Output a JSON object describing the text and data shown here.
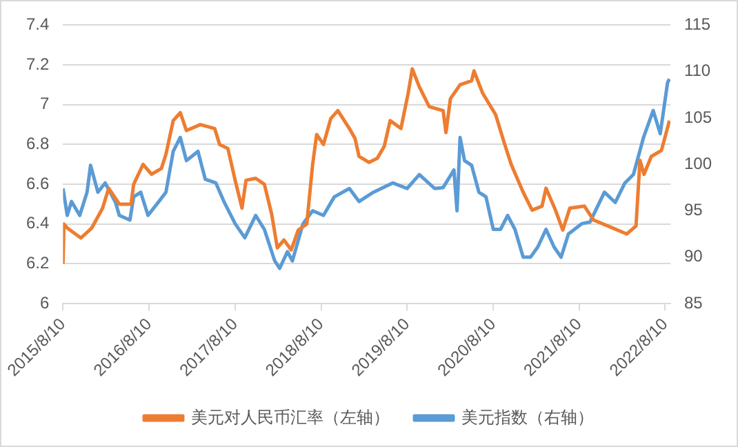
{
  "chart_data": {
    "type": "line",
    "xlim": [
      "2015-08-10",
      "2022-09-01"
    ],
    "xticks": [
      {
        "value": "2015-08-10",
        "label": "2015/8/10"
      },
      {
        "value": "2016-08-10",
        "label": "2016/8/10"
      },
      {
        "value": "2017-08-10",
        "label": "2017/8/10"
      },
      {
        "value": "2018-08-10",
        "label": "2018/8/10"
      },
      {
        "value": "2019-08-10",
        "label": "2019/8/10"
      },
      {
        "value": "2020-08-10",
        "label": "2020/8/10"
      },
      {
        "value": "2021-08-10",
        "label": "2021/8/10"
      },
      {
        "value": "2022-08-10",
        "label": "2022/8/10"
      }
    ],
    "ylim": [
      6,
      7.4
    ],
    "yticks": [
      6,
      6.2,
      6.4,
      6.6,
      6.8,
      7,
      7.2,
      7.4
    ],
    "y2lim": [
      85,
      115
    ],
    "y2ticks": [
      85,
      90,
      95,
      100,
      105,
      110,
      115
    ],
    "grid": "y",
    "legend": "bottom",
    "marker": "none",
    "series": [
      {
        "name": "美元对人民币汇率（左轴）",
        "color": "#ed7d31",
        "x": [
          "2015-08-10",
          "2015-08-14",
          "2015-08-28",
          "2015-10-25",
          "2015-12-10",
          "2016-01-25",
          "2016-02-20",
          "2016-04-05",
          "2016-05-25",
          "2016-06-05",
          "2016-07-15",
          "2016-08-20",
          "2016-10-01",
          "2016-10-20",
          "2016-11-20",
          "2016-12-20",
          "2017-01-15",
          "2017-03-15",
          "2017-05-15",
          "2017-06-05",
          "2017-07-10",
          "2017-08-10",
          "2017-09-08",
          "2017-09-25",
          "2017-11-05",
          "2017-12-12",
          "2018-01-12",
          "2018-02-05",
          "2018-03-05",
          "2018-04-05",
          "2018-05-05",
          "2018-06-10",
          "2018-07-05",
          "2018-07-22",
          "2018-08-20",
          "2018-09-20",
          "2018-10-20",
          "2018-12-08",
          "2019-01-01",
          "2019-01-18",
          "2019-03-01",
          "2019-04-05",
          "2019-05-05",
          "2019-05-30",
          "2019-07-15",
          "2019-08-15",
          "2019-09-01",
          "2019-10-01",
          "2019-11-12",
          "2020-01-10",
          "2020-01-22",
          "2020-02-10",
          "2020-03-22",
          "2020-05-10",
          "2020-05-20",
          "2020-06-25",
          "2020-08-20",
          "2020-09-25",
          "2020-10-25",
          "2020-12-15",
          "2021-01-22",
          "2021-03-05",
          "2021-03-22",
          "2021-05-01",
          "2021-06-01",
          "2021-07-01",
          "2021-09-01",
          "2021-10-10",
          "2021-12-10",
          "2022-02-28",
          "2022-04-08",
          "2022-04-25",
          "2022-05-12",
          "2022-06-12",
          "2022-07-25",
          "2022-08-28"
        ],
        "values": [
          6.2,
          6.4,
          6.38,
          6.33,
          6.38,
          6.48,
          6.58,
          6.5,
          6.5,
          6.6,
          6.7,
          6.65,
          6.68,
          6.75,
          6.92,
          6.96,
          6.87,
          6.9,
          6.88,
          6.8,
          6.78,
          6.62,
          6.48,
          6.62,
          6.63,
          6.6,
          6.45,
          6.28,
          6.32,
          6.27,
          6.37,
          6.4,
          6.7,
          6.85,
          6.8,
          6.93,
          6.97,
          6.88,
          6.83,
          6.74,
          6.71,
          6.73,
          6.79,
          6.92,
          6.88,
          7.06,
          7.18,
          7.09,
          6.99,
          6.97,
          6.86,
          7.03,
          7.1,
          7.12,
          7.17,
          7.06,
          6.95,
          6.81,
          6.7,
          6.56,
          6.47,
          6.49,
          6.58,
          6.47,
          6.37,
          6.48,
          6.49,
          6.42,
          6.39,
          6.35,
          6.39,
          6.72,
          6.65,
          6.74,
          6.77,
          6.92
        ]
      },
      {
        "name": "美元指数（右轴）",
        "color": "#5b9bd5",
        "axis": "y2",
        "x": [
          "2015-08-10",
          "2015-08-28",
          "2015-09-15",
          "2015-10-20",
          "2015-11-20",
          "2015-12-05",
          "2016-01-05",
          "2016-02-05",
          "2016-03-20",
          "2016-04-05",
          "2016-05-20",
          "2016-06-05",
          "2016-07-05",
          "2016-08-05",
          "2016-09-20",
          "2016-10-20",
          "2016-11-20",
          "2016-12-20",
          "2017-01-15",
          "2017-03-05",
          "2017-04-05",
          "2017-05-20",
          "2017-06-25",
          "2017-08-10",
          "2017-09-20",
          "2017-11-05",
          "2017-12-12",
          "2018-01-25",
          "2018-02-15",
          "2018-03-20",
          "2018-04-10",
          "2018-05-25",
          "2018-07-05",
          "2018-08-20",
          "2018-10-05",
          "2018-12-08",
          "2019-01-18",
          "2019-03-20",
          "2019-06-10",
          "2019-08-10",
          "2019-10-01",
          "2019-12-05",
          "2020-01-10",
          "2020-02-25",
          "2020-03-09",
          "2020-03-22",
          "2020-04-10",
          "2020-05-10",
          "2020-06-10",
          "2020-07-10",
          "2020-08-10",
          "2020-09-10",
          "2020-10-10",
          "2020-11-10",
          "2020-12-15",
          "2021-01-15",
          "2021-02-15",
          "2021-03-22",
          "2021-04-25",
          "2021-05-25",
          "2021-06-25",
          "2021-08-20",
          "2021-09-25",
          "2021-11-25",
          "2022-01-10",
          "2022-02-20",
          "2022-03-28",
          "2022-05-10",
          "2022-06-20",
          "2022-07-20",
          "2022-08-20",
          "2022-08-28"
        ],
        "values": [
          97.4,
          94.5,
          96,
          94.5,
          97,
          99.9,
          97,
          98,
          95.9,
          94.5,
          94,
          96.5,
          97,
          94.5,
          96,
          97,
          101.4,
          102.9,
          100.4,
          101.4,
          98.4,
          98,
          95.9,
          93.6,
          92.1,
          94.5,
          93,
          89.6,
          88.8,
          90.6,
          89.6,
          93.6,
          95,
          94.5,
          96.5,
          97.4,
          96,
          97,
          98,
          97.4,
          98.9,
          97.4,
          97.5,
          99.4,
          95,
          102.9,
          100.4,
          99.9,
          97,
          96.5,
          93,
          93,
          94.5,
          93,
          90,
          90,
          91.1,
          93,
          91.1,
          90,
          92.5,
          93.6,
          93.8,
          97,
          95.9,
          98,
          98.9,
          102.9,
          105.8,
          103.3,
          108.8,
          109.2
        ]
      }
    ]
  }
}
